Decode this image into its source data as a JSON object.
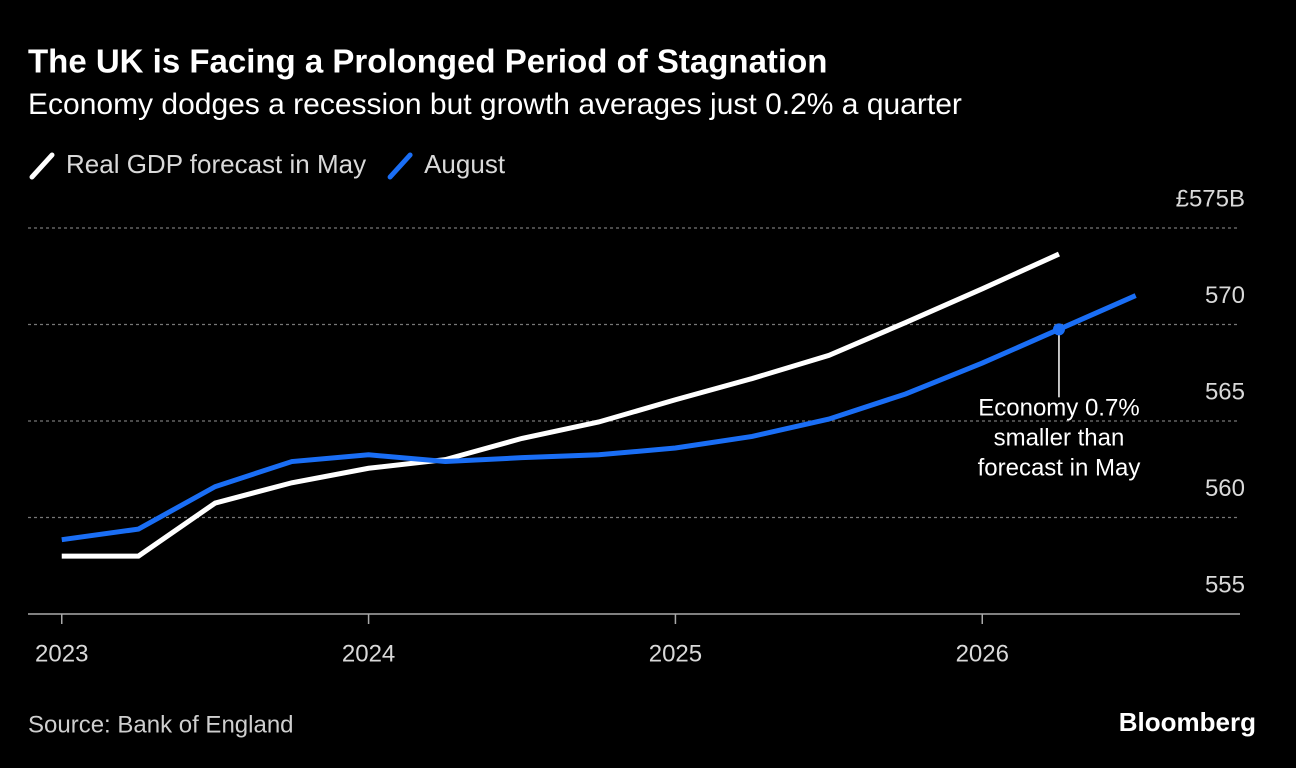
{
  "chart_data": {
    "type": "line",
    "title": "The UK is Facing a Prolonged Period of Stagnation",
    "subtitle": "Economy dodges a recession but growth averages just 0.2% a quarter",
    "x": [
      2023,
      2023.25,
      2023.5,
      2023.75,
      2024,
      2024.25,
      2024.5,
      2024.75,
      2025,
      2025.25,
      2025.5,
      2025.75,
      2026,
      2026.25,
      2026.5
    ],
    "series": [
      {
        "name": "Real GDP forecast in May",
        "color": "#ffffff",
        "values": [
          558.0,
          558.0,
          560.75,
          561.8,
          562.55,
          563.0,
          564.1,
          564.95,
          566.1,
          567.2,
          568.4,
          570.1,
          571.85,
          573.65,
          null
        ]
      },
      {
        "name": "August",
        "color": "#1a6ef5",
        "values": [
          558.85,
          559.4,
          561.6,
          562.9,
          563.25,
          562.9,
          563.1,
          563.25,
          563.6,
          564.2,
          565.1,
          566.4,
          568.0,
          569.75,
          571.5
        ]
      }
    ],
    "xlim": [
      2022.89,
      2026.84
    ],
    "xticks": [
      2023,
      2024,
      2025,
      2026
    ],
    "ylim": [
      555,
      575
    ],
    "yticks": [
      555,
      560,
      565,
      570,
      {
        "value": 575,
        "label": "£575B"
      }
    ],
    "grid": true,
    "annotation": {
      "series": 1,
      "index": 13,
      "lines": [
        "Economy 0.7%",
        "smaller than",
        "forecast in May"
      ]
    },
    "source": "Source: Bank of England",
    "brand": "Bloomberg"
  }
}
